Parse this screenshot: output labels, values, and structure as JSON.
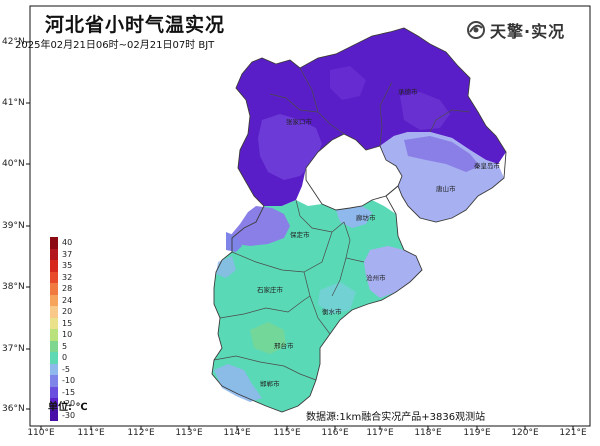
{
  "title": "河北省小时气温实况",
  "subtitle": "2025年02月21日06时~02月21日07时 BJT",
  "logo_text": "天擎·实况",
  "unit": "单位: ℃",
  "source": "数据源:1km融合实况产品+3836观测站",
  "lat_labels": [
    "42°N",
    "41°N",
    "40°N",
    "39°N",
    "38°N",
    "37°N",
    "36°N"
  ],
  "lon_labels": [
    "110°E",
    "111°E",
    "112°E",
    "113°E",
    "114°E",
    "115°E",
    "116°E",
    "117°E",
    "118°E",
    "119°E",
    "120°E",
    "121°E"
  ],
  "legend": [
    {
      "value": "40",
      "color": "#8b0a14"
    },
    {
      "value": "37",
      "color": "#b3161c"
    },
    {
      "value": "35",
      "color": "#d7281e"
    },
    {
      "value": "32",
      "color": "#e84a2c"
    },
    {
      "value": "28",
      "color": "#f07a40"
    },
    {
      "value": "24",
      "color": "#f6a35c"
    },
    {
      "value": "20",
      "color": "#f9c98a"
    },
    {
      "value": "15",
      "color": "#e9e28a"
    },
    {
      "value": "10",
      "color": "#b9e27d"
    },
    {
      "value": "5",
      "color": "#7fd68e"
    },
    {
      "value": "0",
      "color": "#5fd9b4"
    },
    {
      "value": "-5",
      "color": "#8fb8ec"
    },
    {
      "value": "-10",
      "color": "#7f85e8"
    },
    {
      "value": "-15",
      "color": "#6a4ee0"
    },
    {
      "value": "-20",
      "color": "#5a22c8"
    },
    {
      "value": "-30",
      "color": "#4a0ea8"
    }
  ],
  "cities": {
    "chengde": "承德市",
    "zhangjiakou": "张家口市",
    "qinhuangdao": "秦皇岛市",
    "tangshan": "唐山市",
    "langfang": "廊坊市",
    "baoding": "保定市",
    "cangzhou": "沧州市",
    "shijiazhuang": "石家庄市",
    "hengshui": "衡水市",
    "xingtai": "邢台市",
    "handan": "邯郸市"
  },
  "colors": {
    "cold_deep": "#5a1ec8",
    "cold_mid": "#8a7fe6",
    "cold_light": "#a7b0f0",
    "mild": "#5ad9b6"
  }
}
